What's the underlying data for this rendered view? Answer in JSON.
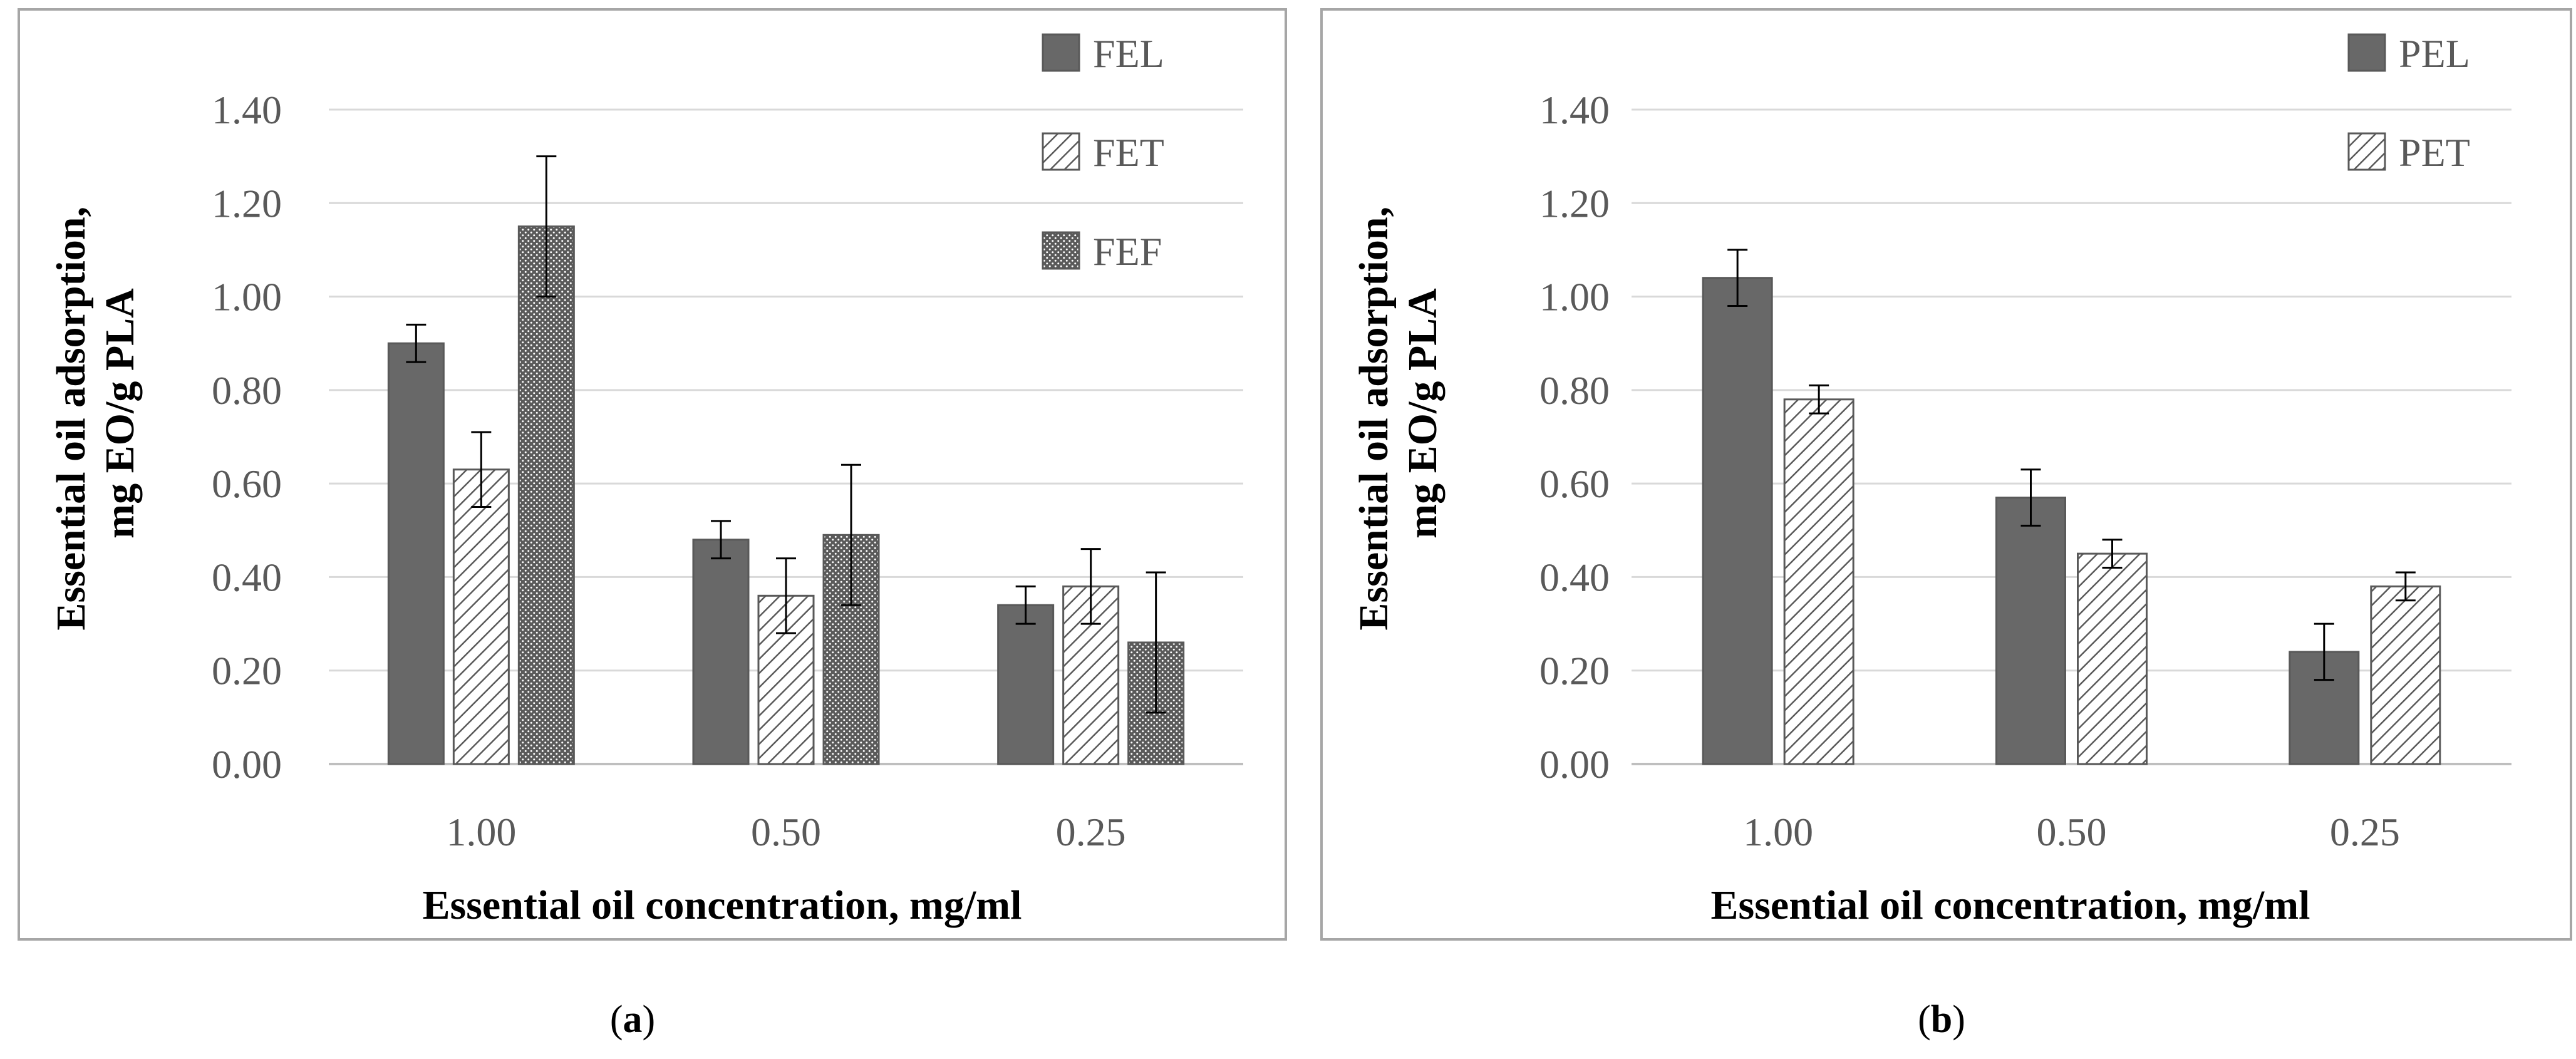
{
  "chart_data": [
    {
      "type": "bar",
      "panel_label": "a",
      "categories": [
        "1.00",
        "0.50",
        "0.25"
      ],
      "series": [
        {
          "name": "FEL",
          "pattern": "solid",
          "values": [
            0.9,
            0.48,
            0.34
          ],
          "errors": [
            0.04,
            0.04,
            0.04
          ]
        },
        {
          "name": "FET",
          "pattern": "diagonal",
          "values": [
            0.63,
            0.36,
            0.38
          ],
          "errors": [
            0.08,
            0.08,
            0.08
          ]
        },
        {
          "name": "FEF",
          "pattern": "dotted",
          "values": [
            1.15,
            0.49,
            0.26
          ],
          "errors": [
            0.15,
            0.15,
            0.15
          ]
        }
      ],
      "xlabel": "Essential oil concentration, mg/ml",
      "ylabel_line1": "Essential oil adsorption,",
      "ylabel_line2": "mg EO/g PLA",
      "yticks": [
        "0.00",
        "0.20",
        "0.40",
        "0.60",
        "0.80",
        "1.00",
        "1.20",
        "1.40"
      ],
      "ylim": [
        0,
        1.4
      ],
      "grid": true,
      "legend": "top-right"
    },
    {
      "type": "bar",
      "panel_label": "b",
      "categories": [
        "1.00",
        "0.50",
        "0.25"
      ],
      "series": [
        {
          "name": "PEL",
          "pattern": "solid",
          "values": [
            1.04,
            0.57,
            0.24
          ],
          "errors": [
            0.06,
            0.06,
            0.06
          ]
        },
        {
          "name": "PET",
          "pattern": "diagonal",
          "values": [
            0.78,
            0.45,
            0.38
          ],
          "errors": [
            0.03,
            0.03,
            0.03
          ]
        }
      ],
      "xlabel": "Essential oil concentration, mg/ml",
      "ylabel_line1": "Essential oil adsorption,",
      "ylabel_line2": "mg EO/g PLA",
      "yticks": [
        "0.00",
        "0.20",
        "0.40",
        "0.60",
        "0.80",
        "1.00",
        "1.20",
        "1.40"
      ],
      "ylim": [
        0,
        1.4
      ],
      "grid": true,
      "legend": "top-right"
    }
  ],
  "colors": {
    "bar_fill": "#686868",
    "bar_stroke": "#595959",
    "hatch_line": "#595959",
    "gridline": "#d9d9d9",
    "axis": "#bfbfbf",
    "frame": "#a6a6a6",
    "error_bar": "#000000"
  }
}
